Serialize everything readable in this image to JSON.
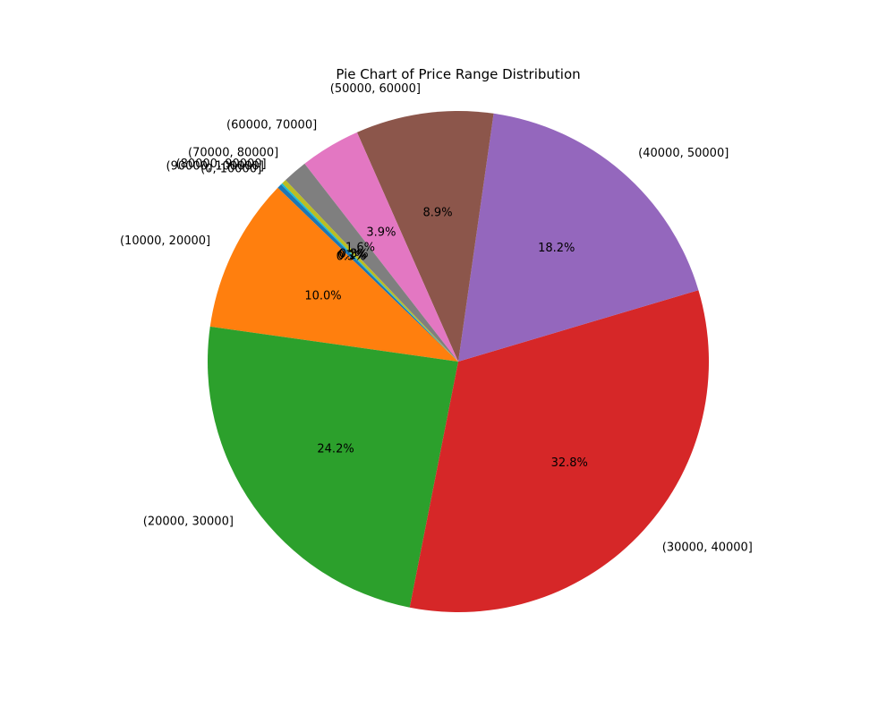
{
  "chart_data": {
    "type": "pie",
    "title": "Pie Chart of Price Range Distribution",
    "start_angle_deg": 135,
    "direction": "counterclockwise",
    "slices": [
      {
        "label": "(0, 10000]",
        "value": 0.3,
        "pct_label": "0.3%",
        "color": "#1f77b4"
      },
      {
        "label": "(10000, 20000]",
        "value": 10.0,
        "pct_label": "10.0%",
        "color": "#ff7f0e"
      },
      {
        "label": "(20000, 30000]",
        "value": 24.2,
        "pct_label": "24.2%",
        "color": "#2ca02c"
      },
      {
        "label": "(30000, 40000]",
        "value": 32.8,
        "pct_label": "32.8%",
        "color": "#d62728"
      },
      {
        "label": "(40000, 50000]",
        "value": 18.2,
        "pct_label": "18.2%",
        "color": "#9467bd"
      },
      {
        "label": "(50000, 60000]",
        "value": 8.9,
        "pct_label": "8.9%",
        "color": "#8c564b"
      },
      {
        "label": "(60000, 70000]",
        "value": 3.9,
        "pct_label": "3.9%",
        "color": "#e377c2"
      },
      {
        "label": "(70000, 80000]",
        "value": 1.6,
        "pct_label": "1.6%",
        "color": "#7f7f7f"
      },
      {
        "label": "(80000, 90000]",
        "value": 0.3,
        "pct_label": "0.3%",
        "color": "#bcbd22"
      },
      {
        "label": "(90000, 100000]",
        "value": 0.1,
        "pct_label": "0.1%",
        "color": "#17becf"
      }
    ]
  }
}
